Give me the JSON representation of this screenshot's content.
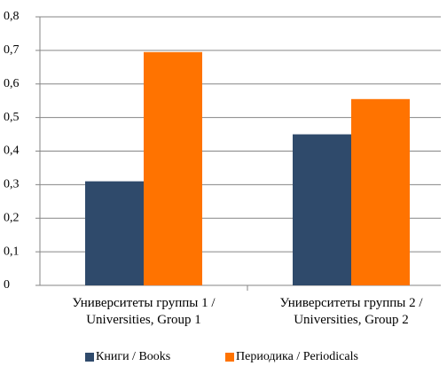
{
  "chart_data": {
    "type": "bar",
    "categories": [
      "Университеты группы 1 /\nUniversities, Group 1",
      "Университеты группы 2 /\nUniversities, Group 2"
    ],
    "series": [
      {
        "name": "Книги / Books",
        "color": "#2f4a6b",
        "values": [
          0.31,
          0.45
        ]
      },
      {
        "name": "Периодика / Periodicals",
        "color": "#ff7300",
        "values": [
          0.695,
          0.555
        ]
      }
    ],
    "ylim": [
      0,
      0.8
    ],
    "yticks": [
      0,
      {
        "value": 0.1,
        "label": "0,1"
      },
      {
        "value": 0.2,
        "label": "0,2"
      },
      {
        "value": 0.3,
        "label": "0,3"
      },
      {
        "value": 0.4,
        "label": "0,4"
      },
      {
        "value": 0.5,
        "label": "0,5"
      },
      {
        "value": 0.6,
        "label": "0,6"
      },
      {
        "value": 0.7,
        "label": "0,7"
      },
      {
        "value": 0.8,
        "label": "0,8"
      }
    ],
    "grid": true,
    "legend": "bottom"
  }
}
